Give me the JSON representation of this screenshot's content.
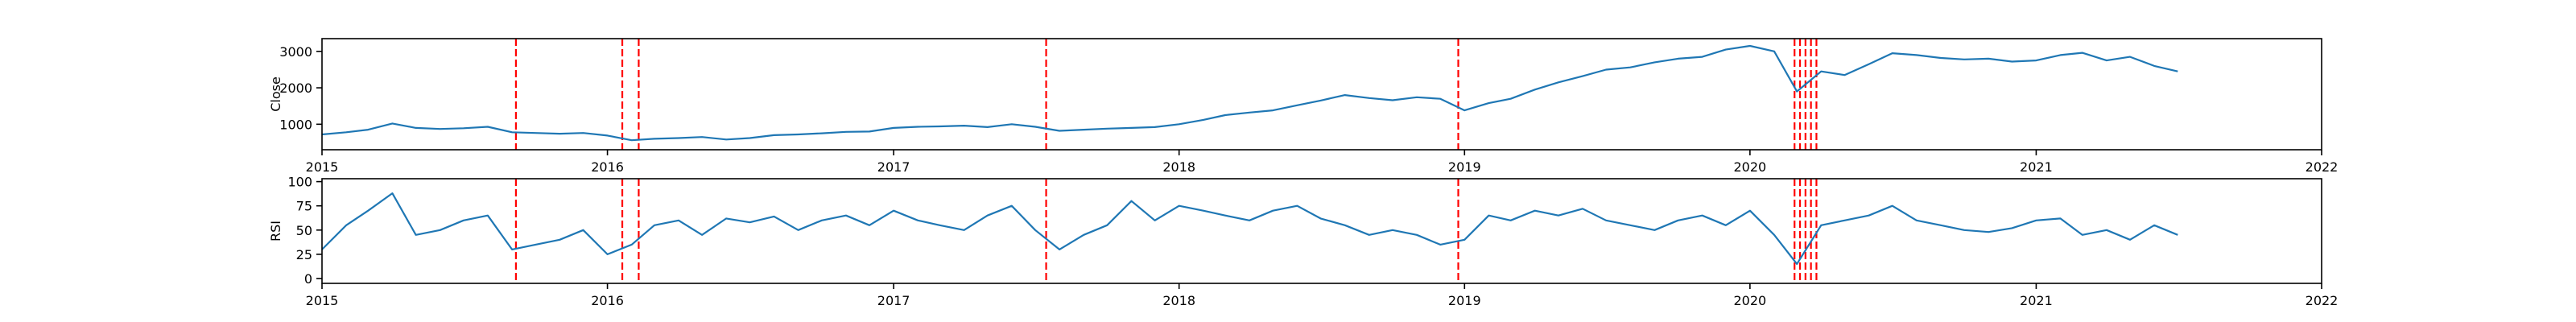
{
  "colors": {
    "line": "#1f77b4",
    "event": "#ff0000",
    "axis": "#000000",
    "background": "#ffffff"
  },
  "chart_data": [
    {
      "type": "line",
      "title": "",
      "xlabel": "",
      "ylabel": "Close",
      "x_ticks": [
        "2015",
        "2016",
        "2017",
        "2018",
        "2019",
        "2020",
        "2021",
        "2022"
      ],
      "x_tick_values": [
        "2015-01-01",
        "2016-01-01",
        "2017-01-01",
        "2018-01-01",
        "2019-01-01",
        "2020-01-01",
        "2021-01-01",
        "2022-01-01"
      ],
      "xlim": [
        "2015-01-01",
        "2022-01-01"
      ],
      "y_ticks": [
        "1000",
        "2000",
        "3000"
      ],
      "y_tick_values": [
        1000,
        2000,
        3000
      ],
      "ylim": [
        300,
        3350
      ],
      "grid": false,
      "series": [
        {
          "x": [
            "2015-01-01",
            "2015-02-01",
            "2015-03-01",
            "2015-04-01",
            "2015-05-01",
            "2015-06-01",
            "2015-07-01",
            "2015-08-01",
            "2015-09-01",
            "2015-10-01",
            "2015-11-01",
            "2015-12-01",
            "2016-01-01",
            "2016-02-01",
            "2016-03-01",
            "2016-04-01",
            "2016-05-01",
            "2016-06-01",
            "2016-07-01",
            "2016-08-01",
            "2016-09-01",
            "2016-10-01",
            "2016-11-01",
            "2016-12-01",
            "2017-01-01",
            "2017-02-01",
            "2017-03-01",
            "2017-04-01",
            "2017-05-01",
            "2017-06-01",
            "2017-07-01",
            "2017-08-01",
            "2017-09-01",
            "2017-10-01",
            "2017-11-01",
            "2017-12-01",
            "2018-01-01",
            "2018-02-01",
            "2018-03-01",
            "2018-04-01",
            "2018-05-01",
            "2018-06-01",
            "2018-07-01",
            "2018-08-01",
            "2018-09-01",
            "2018-10-01",
            "2018-11-01",
            "2018-12-01",
            "2019-01-01",
            "2019-02-01",
            "2019-03-01",
            "2019-04-01",
            "2019-05-01",
            "2019-06-01",
            "2019-07-01",
            "2019-08-01",
            "2019-09-01",
            "2019-10-01",
            "2019-11-01",
            "2019-12-01",
            "2020-01-01",
            "2020-02-01",
            "2020-03-01",
            "2020-04-01",
            "2020-05-01",
            "2020-06-01",
            "2020-07-01",
            "2020-08-01",
            "2020-09-01",
            "2020-10-01",
            "2020-11-01",
            "2020-12-01",
            "2021-01-01",
            "2021-02-01",
            "2021-03-01",
            "2021-04-01",
            "2021-05-01",
            "2021-06-01",
            "2021-07-01"
          ],
          "values": [
            720,
            780,
            850,
            1020,
            900,
            870,
            890,
            930,
            780,
            760,
            740,
            760,
            690,
            560,
            600,
            620,
            650,
            580,
            620,
            700,
            720,
            750,
            790,
            800,
            900,
            930,
            940,
            960,
            920,
            1000,
            930,
            820,
            850,
            880,
            900,
            920,
            1000,
            1120,
            1250,
            1320,
            1380,
            1520,
            1650,
            1800,
            1720,
            1660,
            1740,
            1700,
            1380,
            1580,
            1700,
            1950,
            2150,
            2320,
            2500,
            2560,
            2700,
            2800,
            2850,
            3050,
            3150,
            3000,
            1900,
            2450,
            2350,
            2650,
            2950,
            2900,
            2820,
            2780,
            2800,
            2720,
            2750,
            2900,
            2960,
            2750,
            2850,
            2600,
            2450
          ]
        }
      ],
      "events": [
        "2015-09-06",
        "2016-01-20",
        "2016-02-10",
        "2017-07-15",
        "2018-12-24",
        "2020-02-27",
        "2020-03-05",
        "2020-03-12",
        "2020-03-19",
        "2020-03-26"
      ]
    },
    {
      "type": "line",
      "title": "",
      "xlabel": "",
      "ylabel": "RSI",
      "x_ticks": [
        "2015",
        "2016",
        "2017",
        "2018",
        "2019",
        "2020",
        "2021",
        "2022"
      ],
      "x_tick_values": [
        "2015-01-01",
        "2016-01-01",
        "2017-01-01",
        "2018-01-01",
        "2019-01-01",
        "2020-01-01",
        "2021-01-01",
        "2022-01-01"
      ],
      "xlim": [
        "2015-01-01",
        "2022-01-01"
      ],
      "y_ticks": [
        "0",
        "25",
        "50",
        "75",
        "100"
      ],
      "y_tick_values": [
        0,
        25,
        50,
        75,
        100
      ],
      "ylim": [
        -5,
        103
      ],
      "grid": false,
      "series": [
        {
          "x": [
            "2015-01-01",
            "2015-02-01",
            "2015-03-01",
            "2015-04-01",
            "2015-05-01",
            "2015-06-01",
            "2015-07-01",
            "2015-08-01",
            "2015-09-01",
            "2015-10-01",
            "2015-11-01",
            "2015-12-01",
            "2016-01-01",
            "2016-02-01",
            "2016-03-01",
            "2016-04-01",
            "2016-05-01",
            "2016-06-01",
            "2016-07-01",
            "2016-08-01",
            "2016-09-01",
            "2016-10-01",
            "2016-11-01",
            "2016-12-01",
            "2017-01-01",
            "2017-02-01",
            "2017-03-01",
            "2017-04-01",
            "2017-05-01",
            "2017-06-01",
            "2017-07-01",
            "2017-08-01",
            "2017-09-01",
            "2017-10-01",
            "2017-11-01",
            "2017-12-01",
            "2018-01-01",
            "2018-02-01",
            "2018-03-01",
            "2018-04-01",
            "2018-05-01",
            "2018-06-01",
            "2018-07-01",
            "2018-08-01",
            "2018-09-01",
            "2018-10-01",
            "2018-11-01",
            "2018-12-01",
            "2019-01-01",
            "2019-02-01",
            "2019-03-01",
            "2019-04-01",
            "2019-05-01",
            "2019-06-01",
            "2019-07-01",
            "2019-08-01",
            "2019-09-01",
            "2019-10-01",
            "2019-11-01",
            "2019-12-01",
            "2020-01-01",
            "2020-02-01",
            "2020-03-01",
            "2020-04-01",
            "2020-05-01",
            "2020-06-01",
            "2020-07-01",
            "2020-08-01",
            "2020-09-01",
            "2020-10-01",
            "2020-11-01",
            "2020-12-01",
            "2021-01-01",
            "2021-02-01",
            "2021-03-01",
            "2021-04-01",
            "2021-05-01",
            "2021-06-01",
            "2021-07-01"
          ],
          "values": [
            30,
            55,
            70,
            88,
            45,
            50,
            60,
            65,
            30,
            35,
            40,
            50,
            25,
            35,
            55,
            60,
            45,
            62,
            58,
            64,
            50,
            60,
            65,
            55,
            70,
            60,
            55,
            50,
            65,
            75,
            50,
            30,
            45,
            55,
            80,
            60,
            75,
            70,
            65,
            60,
            70,
            75,
            62,
            55,
            45,
            50,
            45,
            35,
            40,
            65,
            60,
            70,
            65,
            72,
            60,
            55,
            50,
            60,
            65,
            55,
            70,
            45,
            15,
            55,
            60,
            65,
            75,
            60,
            55,
            50,
            48,
            52,
            60,
            62,
            45,
            50,
            40,
            55,
            45
          ]
        }
      ],
      "events": [
        "2015-09-06",
        "2016-01-20",
        "2016-02-10",
        "2017-07-15",
        "2018-12-24",
        "2020-02-27",
        "2020-03-05",
        "2020-03-12",
        "2020-03-19",
        "2020-03-26"
      ]
    }
  ]
}
